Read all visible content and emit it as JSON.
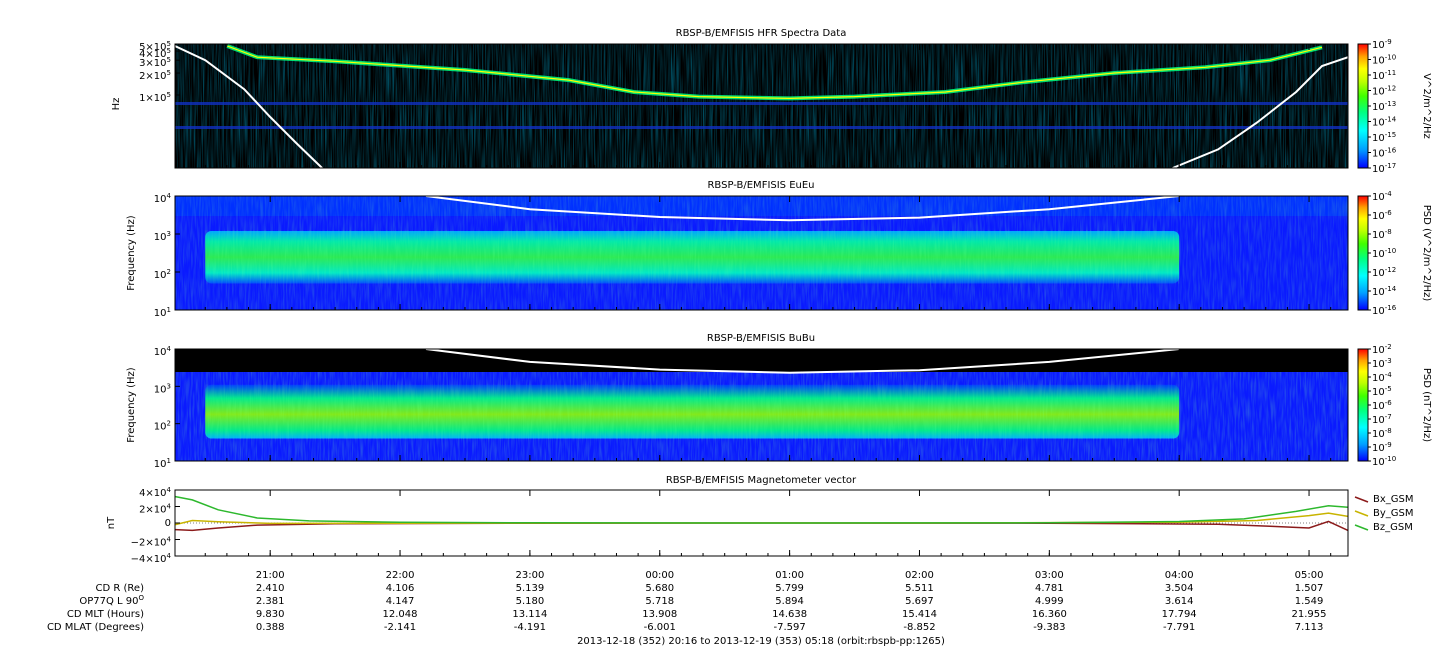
{
  "colors": {
    "background": "#ffffff",
    "spectrogram_bg": "#000000",
    "foreground": "#000000",
    "curve": "#ffffff",
    "bx": "#8b1a1a",
    "by": "#c8b400",
    "bz": "#2db82d"
  },
  "colormap": [
    "#0000ff",
    "#00a0ff",
    "#00ffff",
    "#00ff80",
    "#40ff00",
    "#c0ff00",
    "#ffff00",
    "#ffa000",
    "#ff0000"
  ],
  "footer": {
    "time_range": "2013-12-18 (352) 20:16 to 2013-12-19 (353) 05:18 (orbit:rbspb-pp:1265)"
  },
  "ephemeris": {
    "rows": [
      {
        "label": "CD R (Re)",
        "values": [
          "2.410",
          "4.106",
          "5.139",
          "5.680",
          "5.799",
          "5.511",
          "4.781",
          "3.504",
          "1.507"
        ]
      },
      {
        "label": "OP77Q L 90",
        "label_sup": "O",
        "values": [
          "2.381",
          "4.147",
          "5.180",
          "5.718",
          "5.894",
          "5.697",
          "4.999",
          "3.614",
          "1.549"
        ]
      },
      {
        "label": "CD MLT (Hours)",
        "values": [
          "9.830",
          "12.048",
          "13.114",
          "13.908",
          "14.638",
          "15.414",
          "16.360",
          "17.794",
          "21.955"
        ]
      },
      {
        "label": "CD MLAT (Degrees)",
        "values": [
          "0.388",
          "-2.141",
          "-4.191",
          "-6.001",
          "-7.597",
          "-8.852",
          "-9.383",
          "-7.791",
          "7.113"
        ]
      }
    ]
  },
  "chart_data": [
    {
      "type": "heatmap",
      "title": "RBSP-B/EMFISIS  HFR Spectra Data",
      "ylabel": "Hz",
      "colorbar_label": "V^2/m^2/Hz",
      "x": [
        "21:00",
        "22:00",
        "23:00",
        "00:00",
        "01:00",
        "02:00",
        "03:00",
        "04:00",
        "05:00"
      ],
      "xlim_hours": [
        20.267,
        29.3
      ],
      "ylim": [
        10000,
        500000
      ],
      "yscale": "log",
      "yticks": [
        {
          "value": 500000,
          "label": "5×10",
          "exp": "5"
        },
        {
          "value": 400000,
          "label": "4×10",
          "exp": "5"
        },
        {
          "value": 300000,
          "label": "3×10",
          "exp": "5"
        },
        {
          "value": 200000,
          "label": "2×10",
          "exp": "5"
        },
        {
          "value": 100000,
          "label": "1×10",
          "exp": "5"
        }
      ],
      "colorbar_ticks": [
        {
          "value": -9,
          "label": "10",
          "exp": "-9"
        },
        {
          "value": -10,
          "label": "10",
          "exp": "-10"
        },
        {
          "value": -11,
          "label": "10",
          "exp": "-11"
        },
        {
          "value": -12,
          "label": "10",
          "exp": "-12"
        },
        {
          "value": -13,
          "label": "10",
          "exp": "-13"
        },
        {
          "value": -14,
          "label": "10",
          "exp": "-14"
        },
        {
          "value": -15,
          "label": "10",
          "exp": "-15"
        },
        {
          "value": -16,
          "label": "10",
          "exp": "-16"
        },
        {
          "value": -17,
          "label": "10",
          "exp": "-17"
        }
      ],
      "colorbar_range": [
        -17,
        -9
      ],
      "trace": [
        {
          "t": 20.67,
          "f": 470000
        },
        {
          "t": 20.9,
          "f": 330000
        },
        {
          "t": 21.5,
          "f": 290000
        },
        {
          "t": 22.5,
          "f": 220000
        },
        {
          "t": 23.3,
          "f": 160000
        },
        {
          "t": 23.8,
          "f": 110000
        },
        {
          "t": 24.3,
          "f": 95000
        },
        {
          "t": 25.0,
          "f": 90000
        },
        {
          "t": 25.5,
          "f": 95000
        },
        {
          "t": 26.2,
          "f": 110000
        },
        {
          "t": 26.8,
          "f": 150000
        },
        {
          "t": 27.5,
          "f": 200000
        },
        {
          "t": 28.2,
          "f": 240000
        },
        {
          "t": 28.7,
          "f": 300000
        },
        {
          "t": 29.1,
          "f": 450000
        }
      ],
      "fce_curve": [
        {
          "t": 20.267,
          "f": 470000
        },
        {
          "t": 20.5,
          "f": 300000
        },
        {
          "t": 20.8,
          "f": 120000
        },
        {
          "t": 21.0,
          "f": 50000
        },
        {
          "t": 21.2,
          "f": 22000
        },
        {
          "t": 21.4,
          "f": 10000
        }
      ],
      "fce_curve_right": [
        {
          "t": 27.95,
          "f": 10000
        },
        {
          "t": 28.3,
          "f": 18000
        },
        {
          "t": 28.6,
          "f": 42000
        },
        {
          "t": 28.9,
          "f": 110000
        },
        {
          "t": 29.1,
          "f": 250000
        },
        {
          "t": 29.3,
          "f": 330000
        }
      ]
    },
    {
      "type": "heatmap",
      "title": "RBSP-B/EMFISIS  EuEu",
      "ylabel": "Frequency (Hz)",
      "colorbar_label": "PSD (V^2/m^2/Hz)",
      "ylim": [
        10,
        10000
      ],
      "yscale": "log",
      "yticks": [
        {
          "value": 10000,
          "label": "10",
          "exp": "4"
        },
        {
          "value": 1000,
          "label": "10",
          "exp": "3"
        },
        {
          "value": 100,
          "label": "10",
          "exp": "2"
        },
        {
          "value": 10,
          "label": "10",
          "exp": "1"
        }
      ],
      "colorbar_ticks": [
        {
          "value": -4,
          "label": "10",
          "exp": "-4"
        },
        {
          "value": -6,
          "label": "10",
          "exp": "-6"
        },
        {
          "value": -8,
          "label": "10",
          "exp": "-8"
        },
        {
          "value": -10,
          "label": "10",
          "exp": "-10"
        },
        {
          "value": -12,
          "label": "10",
          "exp": "-12"
        },
        {
          "value": -14,
          "label": "10",
          "exp": "-14"
        },
        {
          "value": -16,
          "label": "10",
          "exp": "-16"
        }
      ],
      "colorbar_range": [
        -16,
        -4
      ],
      "band": {
        "t_start": 20.5,
        "t_end": 28.0,
        "f_low": 50,
        "f_high": 1200
      },
      "fce_curve": [
        {
          "t": 22.2,
          "f": 10000
        },
        {
          "t": 23.0,
          "f": 4500
        },
        {
          "t": 24.0,
          "f": 2800
        },
        {
          "t": 25.0,
          "f": 2300
        },
        {
          "t": 26.0,
          "f": 2700
        },
        {
          "t": 27.0,
          "f": 4500
        },
        {
          "t": 28.0,
          "f": 10000
        }
      ]
    },
    {
      "type": "heatmap",
      "title": "RBSP-B/EMFISIS  BuBu",
      "ylabel": "Frequency (Hz)",
      "colorbar_label": "PSD (nT^2/Hz)",
      "ylim": [
        10,
        10000
      ],
      "yscale": "log",
      "yticks": [
        {
          "value": 10000,
          "label": "10",
          "exp": "4"
        },
        {
          "value": 1000,
          "label": "10",
          "exp": "3"
        },
        {
          "value": 100,
          "label": "10",
          "exp": "2"
        },
        {
          "value": 10,
          "label": "10",
          "exp": "1"
        }
      ],
      "colorbar_ticks": [
        {
          "value": -2,
          "label": "10",
          "exp": "-2"
        },
        {
          "value": -3,
          "label": "10",
          "exp": "-3"
        },
        {
          "value": -4,
          "label": "10",
          "exp": "-4"
        },
        {
          "value": -5,
          "label": "10",
          "exp": "-5"
        },
        {
          "value": -6,
          "label": "10",
          "exp": "-6"
        },
        {
          "value": -7,
          "label": "10",
          "exp": "-7"
        },
        {
          "value": -8,
          "label": "10",
          "exp": "-8"
        },
        {
          "value": -9,
          "label": "10",
          "exp": "-9"
        },
        {
          "value": -10,
          "label": "10",
          "exp": "-10"
        }
      ],
      "colorbar_range": [
        -10,
        -2
      ],
      "band": {
        "t_start": 20.5,
        "t_end": 28.0,
        "f_low": 40,
        "f_high": 1100
      },
      "fce_curve": [
        {
          "t": 22.2,
          "f": 10000
        },
        {
          "t": 23.0,
          "f": 4500
        },
        {
          "t": 24.0,
          "f": 2800
        },
        {
          "t": 25.0,
          "f": 2300
        },
        {
          "t": 26.0,
          "f": 2700
        },
        {
          "t": 27.0,
          "f": 4500
        },
        {
          "t": 28.0,
          "f": 10000
        }
      ]
    },
    {
      "type": "line",
      "title": "RBSP-B/EMFISIS  Magnetometer vector",
      "ylabel": "nT",
      "ylim": [
        -40000,
        40000
      ],
      "yticks": [
        {
          "value": 40000,
          "label": "4×10",
          "exp": "4"
        },
        {
          "value": 20000,
          "label": "2×10",
          "exp": "4"
        },
        {
          "value": 0,
          "label": "0",
          "exp": ""
        },
        {
          "value": -20000,
          "label": "−2×10",
          "exp": "4"
        },
        {
          "value": -40000,
          "label": "−4×10",
          "exp": "4"
        }
      ],
      "series": [
        {
          "name": "Bx_GSM",
          "color": "#8b1a1a",
          "points": [
            [
              20.27,
              -8000
            ],
            [
              20.4,
              -9000
            ],
            [
              20.6,
              -6000
            ],
            [
              20.9,
              -2500
            ],
            [
              21.5,
              -800
            ],
            [
              23.0,
              -200
            ],
            [
              25.0,
              0
            ],
            [
              27.0,
              -300
            ],
            [
              28.3,
              -1500
            ],
            [
              28.7,
              -4000
            ],
            [
              29.0,
              -6000
            ],
            [
              29.15,
              2000
            ],
            [
              29.3,
              -9000
            ]
          ]
        },
        {
          "name": "By_GSM",
          "color": "#c8b400",
          "points": [
            [
              20.27,
              -2000
            ],
            [
              20.4,
              3000
            ],
            [
              20.6,
              1500
            ],
            [
              21.0,
              -500
            ],
            [
              22.0,
              -300
            ],
            [
              24.0,
              0
            ],
            [
              26.0,
              0
            ],
            [
              28.0,
              1000
            ],
            [
              28.6,
              3000
            ],
            [
              29.0,
              9000
            ],
            [
              29.15,
              12000
            ],
            [
              29.3,
              8000
            ]
          ]
        },
        {
          "name": "Bz_GSM",
          "color": "#2db82d",
          "points": [
            [
              20.27,
              32000
            ],
            [
              20.4,
              28000
            ],
            [
              20.6,
              16000
            ],
            [
              20.9,
              6000
            ],
            [
              21.3,
              2500
            ],
            [
              22.0,
              800
            ],
            [
              23.0,
              200
            ],
            [
              25.0,
              0
            ],
            [
              27.0,
              300
            ],
            [
              28.0,
              1800
            ],
            [
              28.5,
              5000
            ],
            [
              28.9,
              14000
            ],
            [
              29.15,
              21000
            ],
            [
              29.3,
              19000
            ]
          ]
        }
      ]
    }
  ]
}
